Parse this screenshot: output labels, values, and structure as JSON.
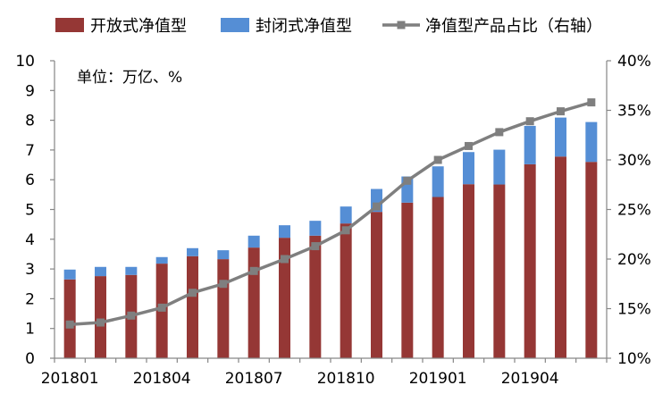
{
  "chart_data": {
    "type": "bar",
    "stacked": true,
    "categories": [
      "201801",
      "201802",
      "201803",
      "201804",
      "201805",
      "201806",
      "201807",
      "201808",
      "201809",
      "201810",
      "201811",
      "201812",
      "201901",
      "201902",
      "201903",
      "201904",
      "201905",
      "201906"
    ],
    "x_tick_labels": [
      "201801",
      "201804",
      "201807",
      "201810",
      "201901",
      "201904"
    ],
    "series": [
      {
        "name": "开放式净值型",
        "kind": "bar",
        "axis": "left",
        "color": "#953735",
        "values": [
          2.65,
          2.76,
          2.8,
          3.18,
          3.43,
          3.33,
          3.72,
          4.05,
          4.12,
          4.53,
          4.92,
          5.23,
          5.42,
          5.85,
          5.84,
          6.52,
          6.78,
          6.6
        ]
      },
      {
        "name": "封闭式净值型",
        "kind": "bar",
        "axis": "left",
        "color": "#558ED5",
        "values": [
          0.33,
          0.31,
          0.27,
          0.22,
          0.27,
          0.3,
          0.4,
          0.42,
          0.5,
          0.57,
          0.77,
          0.88,
          1.03,
          1.08,
          1.17,
          1.29,
          1.31,
          1.34
        ]
      },
      {
        "name": "净值型产品占比（右轴）",
        "kind": "line",
        "axis": "right",
        "color": "#7F7F7F",
        "values": [
          13.4,
          13.6,
          14.3,
          15.1,
          16.6,
          17.5,
          18.8,
          20.0,
          21.3,
          22.9,
          25.3,
          27.9,
          30.0,
          31.4,
          32.8,
          33.9,
          34.9,
          35.8
        ]
      }
    ],
    "y_left": {
      "min": 0,
      "max": 10,
      "ticks": [
        0,
        1,
        2,
        3,
        4,
        5,
        6,
        7,
        8,
        9,
        10
      ]
    },
    "y_right": {
      "min": 10,
      "max": 40,
      "ticks": [
        "10%",
        "15%",
        "20%",
        "25%",
        "30%",
        "35%",
        "40%"
      ]
    },
    "unit_note": "单位：万亿、%",
    "legend_position": "top",
    "grid": false
  }
}
